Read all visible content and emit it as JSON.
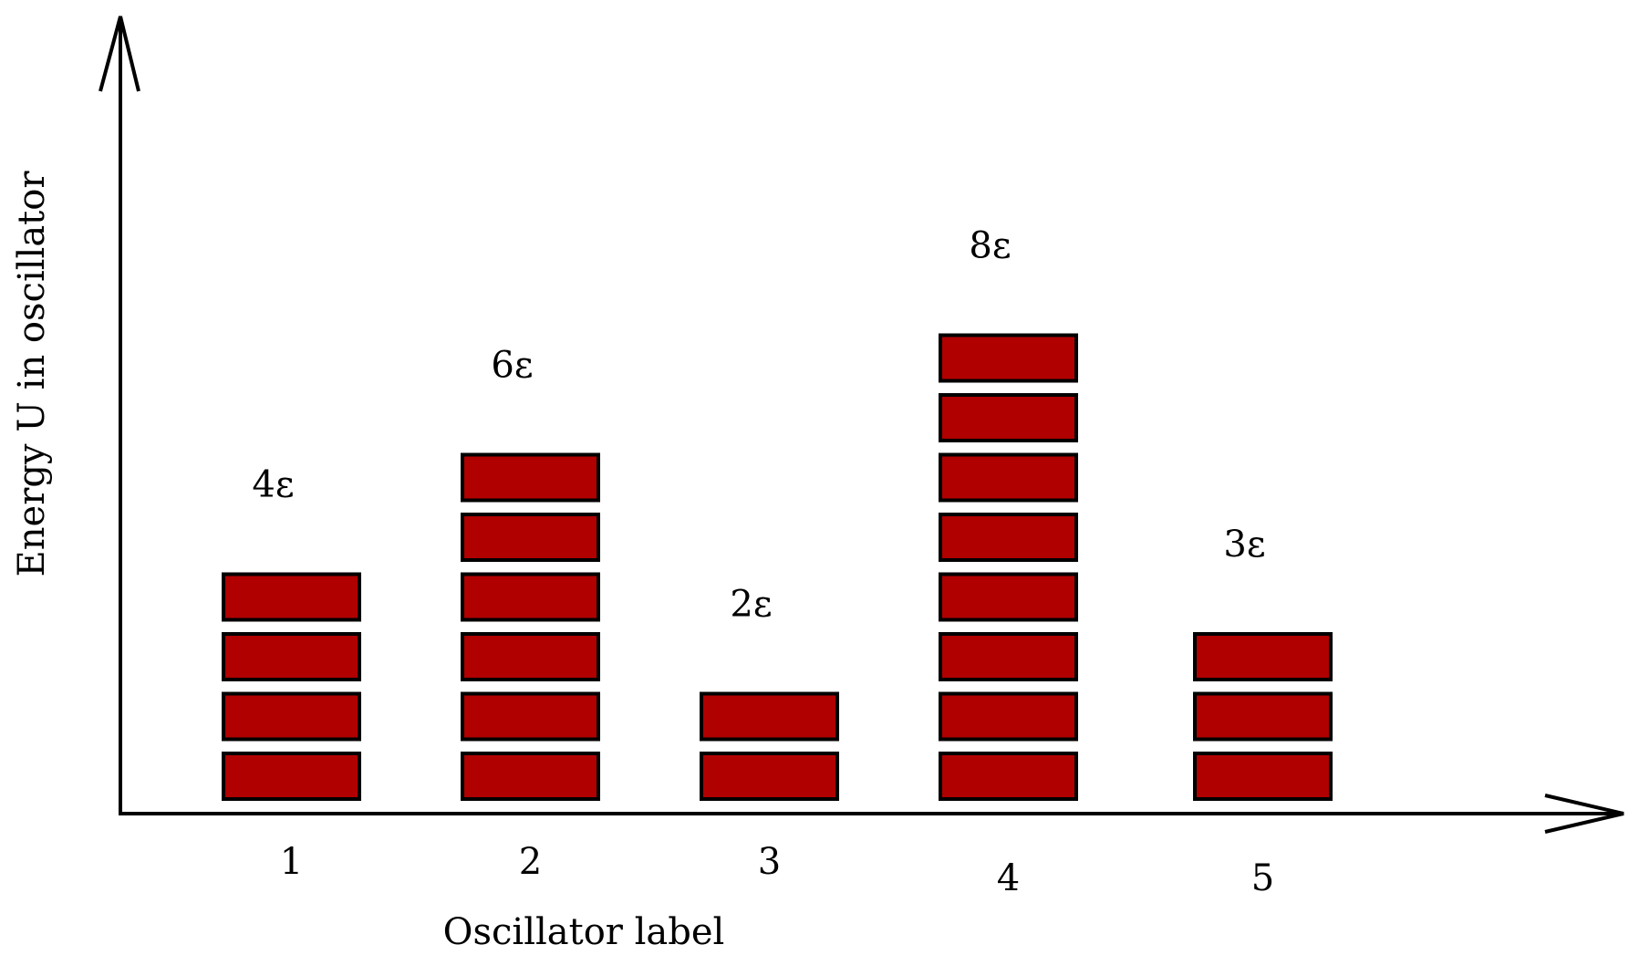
{
  "diagram": {
    "y_axis_label": "Energy U in oscillator",
    "x_axis_label": "Oscillator label",
    "quantum_fill_color": "#b00000",
    "quantum_stroke_color": "#000000",
    "oscillators": [
      {
        "label": "1",
        "quanta": 4,
        "energy_label": "4ε"
      },
      {
        "label": "2",
        "quanta": 6,
        "energy_label": "6ε"
      },
      {
        "label": "3",
        "quanta": 2,
        "energy_label": "2ε"
      },
      {
        "label": "4",
        "quanta": 8,
        "energy_label": "8ε"
      },
      {
        "label": "5",
        "quanta": 3,
        "energy_label": "3ε"
      }
    ]
  }
}
